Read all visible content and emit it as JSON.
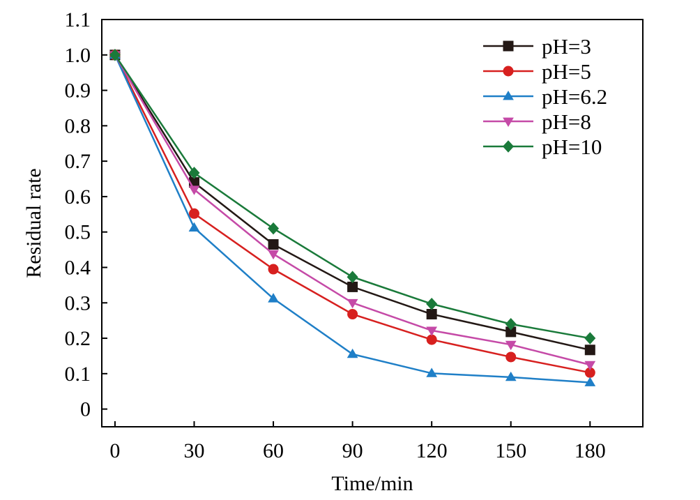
{
  "chart_data": {
    "type": "line",
    "title": "",
    "xlabel": "Time/min",
    "ylabel": "Residual rate",
    "x": [
      0,
      30,
      60,
      90,
      120,
      150,
      180
    ],
    "xlim": [
      -5,
      200
    ],
    "ylim": [
      -0.05,
      1.1
    ],
    "xticks": [
      0,
      30,
      60,
      90,
      120,
      150,
      180
    ],
    "yticks": [
      0,
      0.1,
      0.2,
      0.3,
      0.4,
      0.5,
      0.6,
      0.7,
      0.8,
      0.9,
      1.0,
      1.1
    ],
    "ytick_labels": [
      "0",
      "0.1",
      "0.2",
      "0.3",
      "0.4",
      "0.5",
      "0.6",
      "0.7",
      "0.8",
      "0.9",
      "1.0",
      "1.1"
    ],
    "grid": false,
    "legend_position": "top-right",
    "series": [
      {
        "name": "pH=3",
        "color": "#231815",
        "marker": "square",
        "values": [
          1.0,
          0.64,
          0.465,
          0.345,
          0.268,
          0.218,
          0.167
        ]
      },
      {
        "name": "pH=5",
        "color": "#d7201f",
        "marker": "circle",
        "values": [
          1.0,
          0.552,
          0.395,
          0.268,
          0.196,
          0.147,
          0.103
        ]
      },
      {
        "name": "pH=6.2",
        "color": "#1f7fc7",
        "marker": "triangle-up",
        "values": [
          1.0,
          0.512,
          0.312,
          0.155,
          0.101,
          0.09,
          0.075
        ]
      },
      {
        "name": "pH=8",
        "color": "#c54aa7",
        "marker": "triangle-down",
        "values": [
          1.0,
          0.62,
          0.438,
          0.3,
          0.222,
          0.182,
          0.125
        ]
      },
      {
        "name": "pH=10",
        "color": "#1a7a3a",
        "marker": "diamond",
        "values": [
          1.0,
          0.667,
          0.51,
          0.373,
          0.297,
          0.24,
          0.2
        ]
      }
    ]
  }
}
